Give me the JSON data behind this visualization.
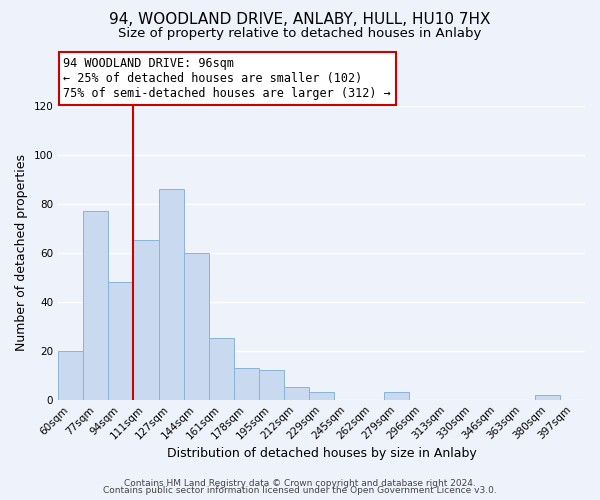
{
  "title": "94, WOODLAND DRIVE, ANLABY, HULL, HU10 7HX",
  "subtitle": "Size of property relative to detached houses in Anlaby",
  "xlabel": "Distribution of detached houses by size in Anlaby",
  "ylabel": "Number of detached properties",
  "footnote1": "Contains HM Land Registry data © Crown copyright and database right 2024.",
  "footnote2": "Contains public sector information licensed under the Open Government Licence v3.0.",
  "bar_labels": [
    "60sqm",
    "77sqm",
    "94sqm",
    "111sqm",
    "127sqm",
    "144sqm",
    "161sqm",
    "178sqm",
    "195sqm",
    "212sqm",
    "229sqm",
    "245sqm",
    "262sqm",
    "279sqm",
    "296sqm",
    "313sqm",
    "330sqm",
    "346sqm",
    "363sqm",
    "380sqm",
    "397sqm"
  ],
  "bar_values": [
    20,
    77,
    48,
    65,
    86,
    60,
    25,
    13,
    12,
    5,
    3,
    0,
    0,
    3,
    0,
    0,
    0,
    0,
    0,
    2,
    0
  ],
  "bar_color": "#c9daf0",
  "bar_edge_color": "#89b4d8",
  "highlight_color": "#cc0000",
  "ylim": [
    0,
    120
  ],
  "yticks": [
    0,
    20,
    40,
    60,
    80,
    100,
    120
  ],
  "annotation_title": "94 WOODLAND DRIVE: 96sqm",
  "annotation_line1": "← 25% of detached houses are smaller (102)",
  "annotation_line2": "75% of semi-detached houses are larger (312) →",
  "vline_x": 2.5,
  "background_color": "#eef2fa",
  "title_fontsize": 11,
  "subtitle_fontsize": 9.5,
  "xlabel_fontsize": 9,
  "ylabel_fontsize": 9,
  "tick_fontsize": 7.5,
  "annotation_fontsize": 8.5,
  "footnote_fontsize": 6.5
}
